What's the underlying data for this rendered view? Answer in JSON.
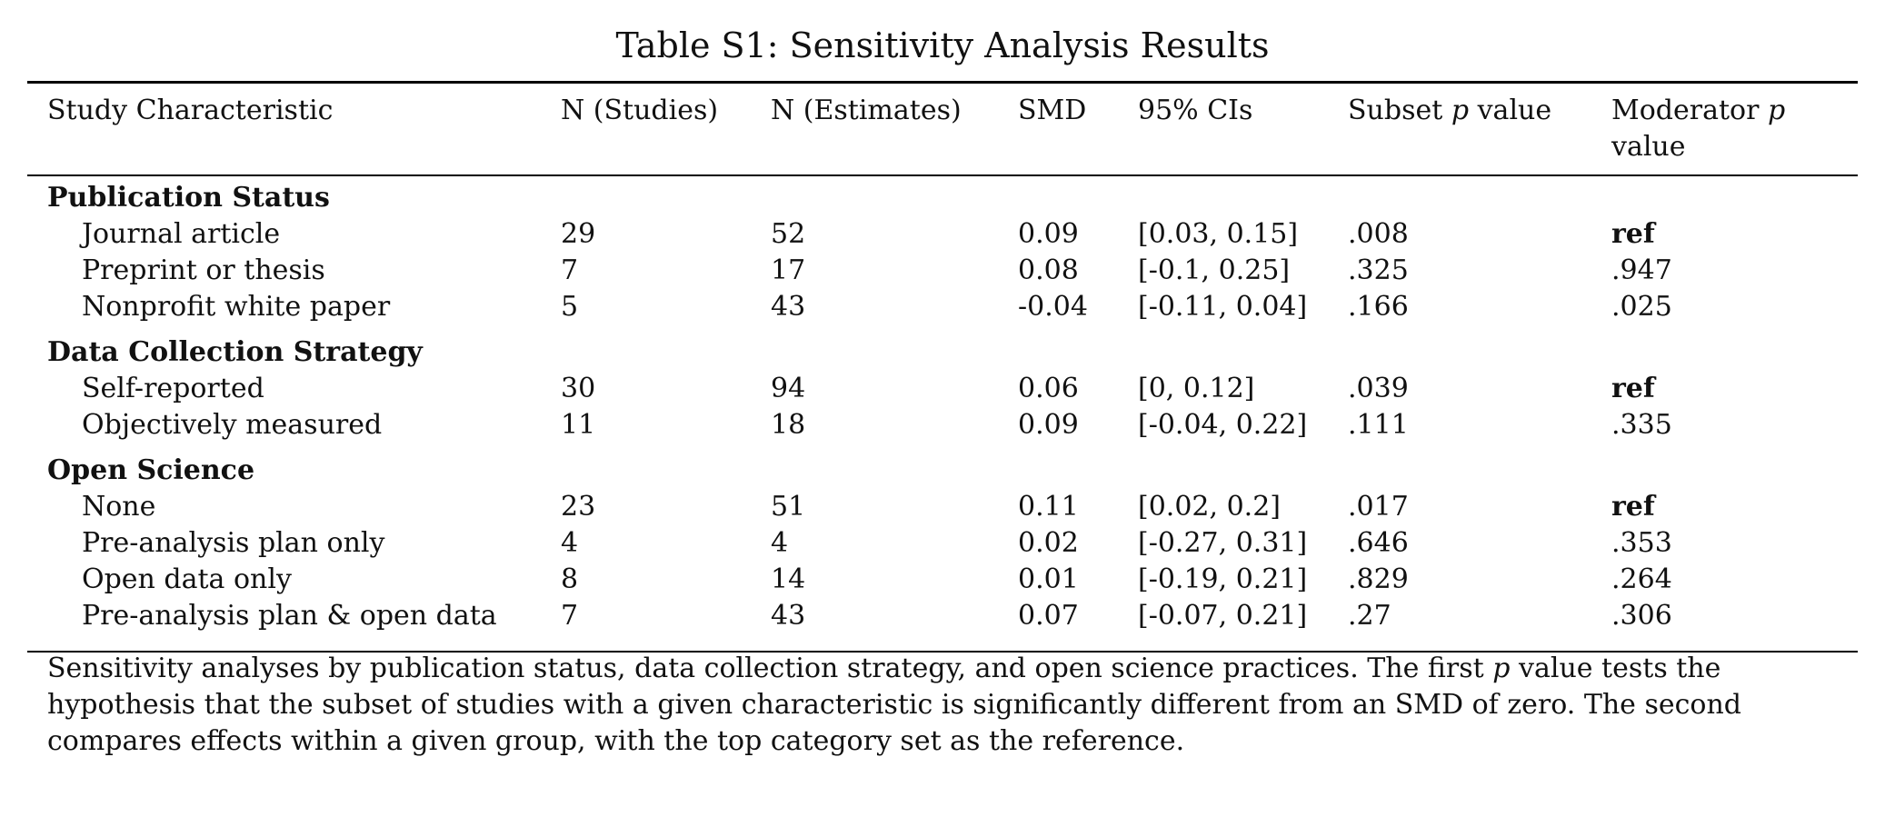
{
  "table": {
    "caption": "Table S1: Sensitivity Analysis Results",
    "headers": {
      "characteristic": "Study Characteristic",
      "n_studies": "N (Studies)",
      "n_estimates": "N (Estimates)",
      "smd": "SMD",
      "ci": "95% CIs",
      "subset_p_pre": "Subset",
      "subset_p_italic": "p",
      "subset_p_post": "value",
      "moderator_p_pre": "Moderator",
      "moderator_p_italic": "p",
      "moderator_p_post": "value"
    },
    "sections": [
      {
        "title": "Publication Status",
        "rows": [
          {
            "label": "Journal article",
            "n_studies": "29",
            "n_estimates": "52",
            "smd": "0.09",
            "ci": "[0.03, 0.15]",
            "subset_p": ".008",
            "moderator_p": "ref"
          },
          {
            "label": "Preprint or thesis",
            "n_studies": "7",
            "n_estimates": "17",
            "smd": "0.08",
            "ci": "[-0.1, 0.25]",
            "subset_p": ".325",
            "moderator_p": ".947"
          },
          {
            "label": "Nonprofit white paper",
            "n_studies": "5",
            "n_estimates": "43",
            "smd": "-0.04",
            "ci": "[-0.11, 0.04]",
            "subset_p": ".166",
            "moderator_p": ".025"
          }
        ]
      },
      {
        "title": "Data Collection Strategy",
        "rows": [
          {
            "label": "Self-reported",
            "n_studies": "30",
            "n_estimates": "94",
            "smd": "0.06",
            "ci": "[0, 0.12]",
            "subset_p": ".039",
            "moderator_p": "ref"
          },
          {
            "label": "Objectively measured",
            "n_studies": "11",
            "n_estimates": "18",
            "smd": "0.09",
            "ci": "[-0.04, 0.22]",
            "subset_p": ".111",
            "moderator_p": ".335"
          }
        ]
      },
      {
        "title": "Open Science",
        "rows": [
          {
            "label": "None",
            "n_studies": "23",
            "n_estimates": "51",
            "smd": "0.11",
            "ci": "[0.02, 0.2]",
            "subset_p": ".017",
            "moderator_p": "ref"
          },
          {
            "label": "Pre-analysis plan only",
            "n_studies": "4",
            "n_estimates": "4",
            "smd": "0.02",
            "ci": "[-0.27, 0.31]",
            "subset_p": ".646",
            "moderator_p": ".353"
          },
          {
            "label": "Open data only",
            "n_studies": "8",
            "n_estimates": "14",
            "smd": "0.01",
            "ci": "[-0.19, 0.21]",
            "subset_p": ".829",
            "moderator_p": ".264"
          },
          {
            "label": "Pre-analysis plan & open data",
            "n_studies": "7",
            "n_estimates": "43",
            "smd": "0.07",
            "ci": "[-0.07, 0.21]",
            "subset_p": ".27",
            "moderator_p": ".306"
          }
        ]
      }
    ],
    "note": {
      "part1": "Sensitivity analyses by publication status, data collection strategy, and open science practices. The first",
      "italic": "p",
      "part2": "value tests the hypothesis that the subset of studies with a given characteristic is significantly different from an SMD of zero. The second compares effects within a given group, with the top category set as the reference."
    }
  }
}
